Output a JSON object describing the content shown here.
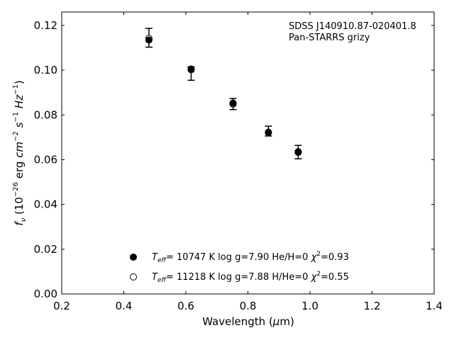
{
  "chart_data": {
    "type": "scatter",
    "x_range": [
      0.2,
      1.4
    ],
    "y_range": [
      0.0,
      0.126
    ],
    "x_ticks": [
      "0.2",
      "0.4",
      "0.6",
      "0.8",
      "1.0",
      "1.2",
      "1.4"
    ],
    "y_ticks": [
      "0.00",
      "0.02",
      "0.04",
      "0.06",
      "0.08",
      "0.10",
      "0.12"
    ],
    "xlabel": "Wavelength (μm)",
    "ylabel": "fν (10⁻²⁶ erg cm⁻² s⁻¹ Hz⁻¹)",
    "annotation_lines": [
      "SDSS J140910.87-020401.8",
      "Pan-STARRS grizy"
    ],
    "observed": {
      "marker": "errorbar",
      "x": [
        0.481,
        0.617,
        0.752,
        0.866,
        0.962
      ],
      "y": [
        0.1145,
        0.0985,
        0.0849,
        0.0728,
        0.0634
      ],
      "err": [
        0.0042,
        0.003,
        0.0025,
        0.0022,
        0.003
      ]
    },
    "series": [
      {
        "name": "Teff= 10747 K  log g=7.90  He/H=0  χ²=0.93",
        "marker": "filled-circle",
        "x": [
          0.481,
          0.617,
          0.752,
          0.866,
          0.962
        ],
        "y": [
          0.1135,
          0.1005,
          0.0853,
          0.0723,
          0.0636
        ]
      },
      {
        "name": "Teff= 11218 K  log g=7.88  H/He=0  χ²=0.55",
        "marker": "open-circle",
        "x": [
          0.481,
          0.617,
          0.752,
          0.866,
          0.962
        ],
        "y": [
          0.1142,
          0.1002,
          0.0849,
          0.0721,
          0.0633
        ]
      }
    ],
    "legend": {
      "placement": "bottom-center",
      "entries": [
        {
          "teff_value": "= 10747 K  log g=7.90  He/H=0  ",
          "chi_value": "=0.93"
        },
        {
          "teff_value": "= 11218 K  log g=7.88  H/He=0  ",
          "chi_value": "=0.55"
        }
      ]
    },
    "grid": false
  }
}
